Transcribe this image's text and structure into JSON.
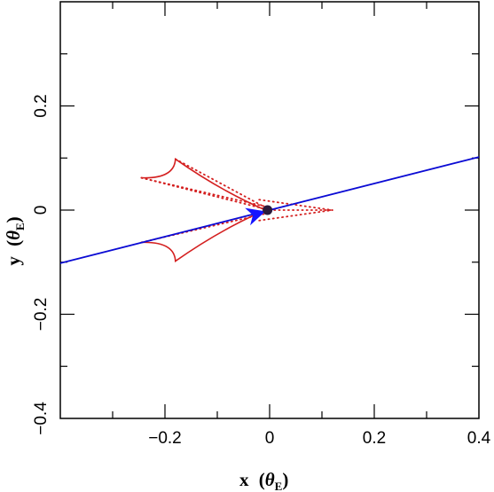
{
  "chart_data": {
    "type": "scatter",
    "title": "",
    "xlabel": {
      "main": "x",
      "symbol": "θ",
      "subscript": "E"
    },
    "ylabel": {
      "main": "y",
      "symbol": "θ",
      "subscript": "E"
    },
    "xlim": [
      -0.4,
      0.4
    ],
    "ylim": [
      -0.4,
      0.4
    ],
    "x_ticks": [
      -0.2,
      0,
      0.2,
      0.4
    ],
    "x_tick_labels": [
      "−0.2",
      "0",
      "0.2",
      "0.4"
    ],
    "y_ticks": [
      -0.4,
      -0.2,
      0,
      0.2
    ],
    "y_tick_labels": [
      "−0.4",
      "−0.2",
      "0",
      "0.2"
    ],
    "minor_tick_step": 0.1,
    "grid": false,
    "legend": "none",
    "colors": {
      "caustic": "#d42020",
      "trajectory": "#0b0bd4",
      "arrow": "#1414ff",
      "lens": "#2a1a3a"
    },
    "series": [
      {
        "kind": "caustic_curve",
        "color": "#d42020",
        "cusps": [
          [
            -0.245,
            0.062
          ],
          [
            -0.18,
            0.098
          ],
          [
            -0.008,
            0.0
          ],
          [
            -0.18,
            -0.098
          ],
          [
            -0.245,
            -0.062
          ]
        ]
      },
      {
        "kind": "dotted_ray",
        "color": "#d42020",
        "points": [
          [
            -0.245,
            0.062
          ],
          [
            0.0,
            0.0
          ],
          [
            0.12,
            0.0
          ]
        ]
      },
      {
        "kind": "source_trajectory",
        "color": "#0b0bd4",
        "points": [
          [
            -0.4,
            -0.102
          ],
          [
            0.4,
            0.102
          ]
        ]
      },
      {
        "kind": "direction_arrow",
        "color": "#1414ff",
        "tip": [
          -0.01,
          -0.003
        ],
        "tail": [
          -0.04,
          -0.012
        ]
      },
      {
        "kind": "lens_position",
        "color": "#2a1a3a",
        "points": [
          [
            -0.004,
            0.0
          ]
        ]
      }
    ]
  }
}
